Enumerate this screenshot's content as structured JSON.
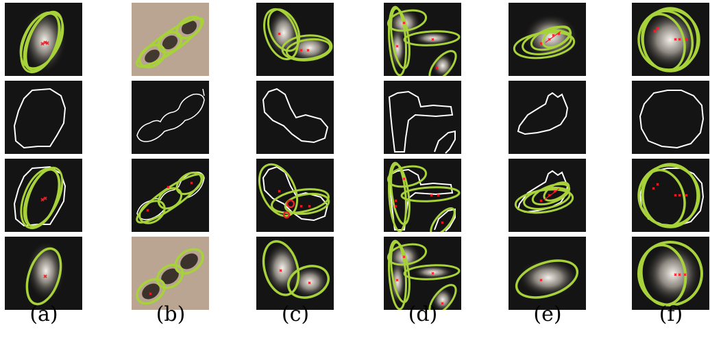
{
  "figure": {
    "captions": [
      "(a)",
      "(b)",
      "(c)",
      "(d)",
      "(e)",
      "(f)"
    ]
  },
  "colors": {
    "ellipse": "#a8d23a",
    "marker": "#e8232a",
    "contour": "#ffffff",
    "cell_background": "#141414",
    "bacteria_background": "#b9a591"
  },
  "rows": [
    "input-fits",
    "contours",
    "fits-on-contours",
    "final-fits"
  ]
}
